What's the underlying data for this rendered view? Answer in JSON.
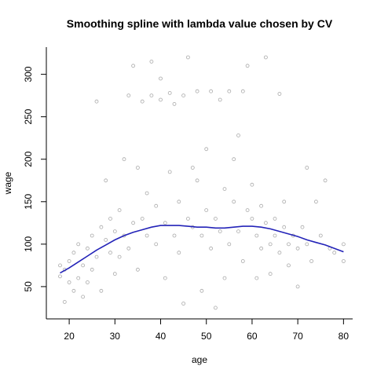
{
  "chart_data": {
    "type": "scatter",
    "title": "Smoothing spline with lambda value chosen by CV",
    "xlabel": "age",
    "ylabel": "wage",
    "xlim": [
      15,
      82
    ],
    "ylim": [
      12,
      332
    ],
    "xticks": [
      20,
      30,
      40,
      50,
      60,
      70,
      80
    ],
    "yticks": [
      50,
      100,
      150,
      200,
      250,
      300
    ],
    "grid": false,
    "colors": {
      "points": "#a9a9a9",
      "spline": "#2323b8",
      "axes": "#000000"
    },
    "series": [
      {
        "type": "scatter",
        "marker": "open-circle",
        "points_sample": [
          [
            18,
            62
          ],
          [
            18,
            75
          ],
          [
            19,
            70
          ],
          [
            19,
            32
          ],
          [
            20,
            80
          ],
          [
            20,
            55
          ],
          [
            21,
            45
          ],
          [
            21,
            90
          ],
          [
            22,
            60
          ],
          [
            22,
            100
          ],
          [
            23,
            38
          ],
          [
            23,
            75
          ],
          [
            24,
            95
          ],
          [
            24,
            55
          ],
          [
            25,
            110
          ],
          [
            25,
            70
          ],
          [
            26,
            268
          ],
          [
            26,
            85
          ],
          [
            27,
            120
          ],
          [
            27,
            45
          ],
          [
            28,
            105
          ],
          [
            28,
            175
          ],
          [
            29,
            90
          ],
          [
            29,
            130
          ],
          [
            30,
            115
          ],
          [
            30,
            65
          ],
          [
            31,
            140
          ],
          [
            31,
            85
          ],
          [
            32,
            200
          ],
          [
            32,
            110
          ],
          [
            33,
            275
          ],
          [
            33,
            95
          ],
          [
            34,
            125
          ],
          [
            34,
            310
          ],
          [
            35,
            190
          ],
          [
            35,
            70
          ],
          [
            36,
            268
          ],
          [
            36,
            130
          ],
          [
            37,
            110
          ],
          [
            37,
            160
          ],
          [
            38,
            315
          ],
          [
            38,
            275
          ],
          [
            39,
            100
          ],
          [
            39,
            145
          ],
          [
            40,
            295
          ],
          [
            40,
            270
          ],
          [
            41,
            125
          ],
          [
            41,
            60
          ],
          [
            42,
            185
          ],
          [
            42,
            278
          ],
          [
            43,
            110
          ],
          [
            43,
            265
          ],
          [
            44,
            150
          ],
          [
            44,
            90
          ],
          [
            45,
            275
          ],
          [
            45,
            30
          ],
          [
            46,
            320
          ],
          [
            46,
            130
          ],
          [
            47,
            120
          ],
          [
            47,
            190
          ],
          [
            48,
            175
          ],
          [
            48,
            280
          ],
          [
            49,
            110
          ],
          [
            49,
            45
          ],
          [
            50,
            212
          ],
          [
            50,
            140
          ],
          [
            51,
            95
          ],
          [
            51,
            280
          ],
          [
            52,
            130
          ],
          [
            52,
            25
          ],
          [
            53,
            270
          ],
          [
            53,
            115
          ],
          [
            54,
            165
          ],
          [
            54,
            60
          ],
          [
            55,
            280
          ],
          [
            55,
            100
          ],
          [
            56,
            150
          ],
          [
            56,
            200
          ],
          [
            57,
            228
          ],
          [
            57,
            115
          ],
          [
            58,
            280
          ],
          [
            58,
            80
          ],
          [
            59,
            310
          ],
          [
            59,
            140
          ],
          [
            60,
            170
          ],
          [
            60,
            130
          ],
          [
            61,
            110
          ],
          [
            61,
            60
          ],
          [
            62,
            145
          ],
          [
            62,
            95
          ],
          [
            63,
            320
          ],
          [
            63,
            125
          ],
          [
            64,
            100
          ],
          [
            64,
            65
          ],
          [
            65,
            130
          ],
          [
            65,
            110
          ],
          [
            66,
            277
          ],
          [
            66,
            90
          ],
          [
            67,
            120
          ],
          [
            67,
            150
          ],
          [
            68,
            100
          ],
          [
            68,
            75
          ],
          [
            69,
            110
          ],
          [
            70,
            95
          ],
          [
            70,
            50
          ],
          [
            71,
            120
          ],
          [
            72,
            190
          ],
          [
            72,
            100
          ],
          [
            73,
            80
          ],
          [
            74,
            150
          ],
          [
            75,
            110
          ],
          [
            76,
            175
          ],
          [
            77,
            95
          ],
          [
            78,
            90
          ],
          [
            80,
            80
          ],
          [
            80,
            100
          ]
        ]
      },
      {
        "type": "line",
        "x": [
          18,
          20,
          22,
          24,
          26,
          28,
          30,
          32,
          34,
          36,
          38,
          40,
          42,
          44,
          46,
          48,
          50,
          52,
          54,
          56,
          58,
          60,
          62,
          64,
          66,
          68,
          70,
          72,
          74,
          76,
          78,
          80
        ],
        "y": [
          66,
          72,
          79,
          86,
          93,
          99,
          105,
          110,
          114,
          117,
          120,
          122,
          122,
          122,
          121,
          120,
          120,
          119,
          119,
          120,
          121,
          121,
          120,
          118,
          115,
          112,
          109,
          105,
          102,
          99,
          95,
          91
        ]
      }
    ]
  }
}
